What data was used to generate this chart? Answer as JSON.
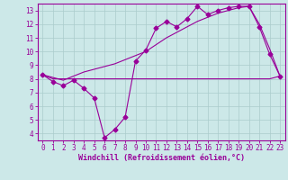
{
  "line1_x": [
    0,
    1,
    2,
    3,
    4,
    5,
    6,
    7,
    8,
    9,
    10,
    11,
    12,
    13,
    14,
    15,
    16,
    17,
    18,
    19,
    20,
    21,
    22,
    23
  ],
  "line1_y": [
    8.3,
    7.8,
    7.5,
    7.9,
    7.3,
    6.6,
    3.7,
    4.3,
    5.2,
    9.3,
    10.1,
    11.7,
    12.2,
    11.8,
    12.4,
    13.3,
    12.7,
    13.0,
    13.2,
    13.3,
    13.3,
    11.8,
    9.8,
    8.2
  ],
  "line2_x": [
    0,
    1,
    2,
    3,
    4,
    5,
    6,
    7,
    8,
    9,
    10,
    11,
    12,
    13,
    14,
    15,
    16,
    17,
    18,
    19,
    20,
    21,
    22,
    23
  ],
  "line2_y": [
    8.3,
    8.1,
    7.9,
    8.2,
    8.5,
    8.7,
    8.9,
    9.1,
    9.4,
    9.7,
    10.0,
    10.5,
    11.0,
    11.4,
    11.8,
    12.2,
    12.5,
    12.8,
    13.0,
    13.2,
    13.3,
    12.0,
    10.2,
    8.2
  ],
  "line3_x": [
    0,
    1,
    2,
    3,
    4,
    5,
    6,
    7,
    8,
    9,
    10,
    11,
    12,
    13,
    14,
    15,
    16,
    17,
    18,
    19,
    20,
    21,
    22,
    23
  ],
  "line3_y": [
    8.3,
    8.0,
    8.0,
    8.0,
    8.0,
    8.0,
    8.0,
    8.0,
    8.0,
    8.0,
    8.0,
    8.0,
    8.0,
    8.0,
    8.0,
    8.0,
    8.0,
    8.0,
    8.0,
    8.0,
    8.0,
    8.0,
    8.0,
    8.2
  ],
  "line_color": "#990099",
  "bg_color": "#cce8e8",
  "grid_color": "#aacccc",
  "xlabel": "Windchill (Refroidissement éolien,°C)",
  "xlim": [
    -0.5,
    23.5
  ],
  "ylim": [
    3.5,
    13.5
  ],
  "yticks": [
    4,
    5,
    6,
    7,
    8,
    9,
    10,
    11,
    12,
    13
  ],
  "xticks": [
    0,
    1,
    2,
    3,
    4,
    5,
    6,
    7,
    8,
    9,
    10,
    11,
    12,
    13,
    14,
    15,
    16,
    17,
    18,
    19,
    20,
    21,
    22,
    23
  ],
  "marker": "D",
  "markersize": 2.5,
  "tick_fontsize": 5.5,
  "xlabel_fontsize": 6.0
}
